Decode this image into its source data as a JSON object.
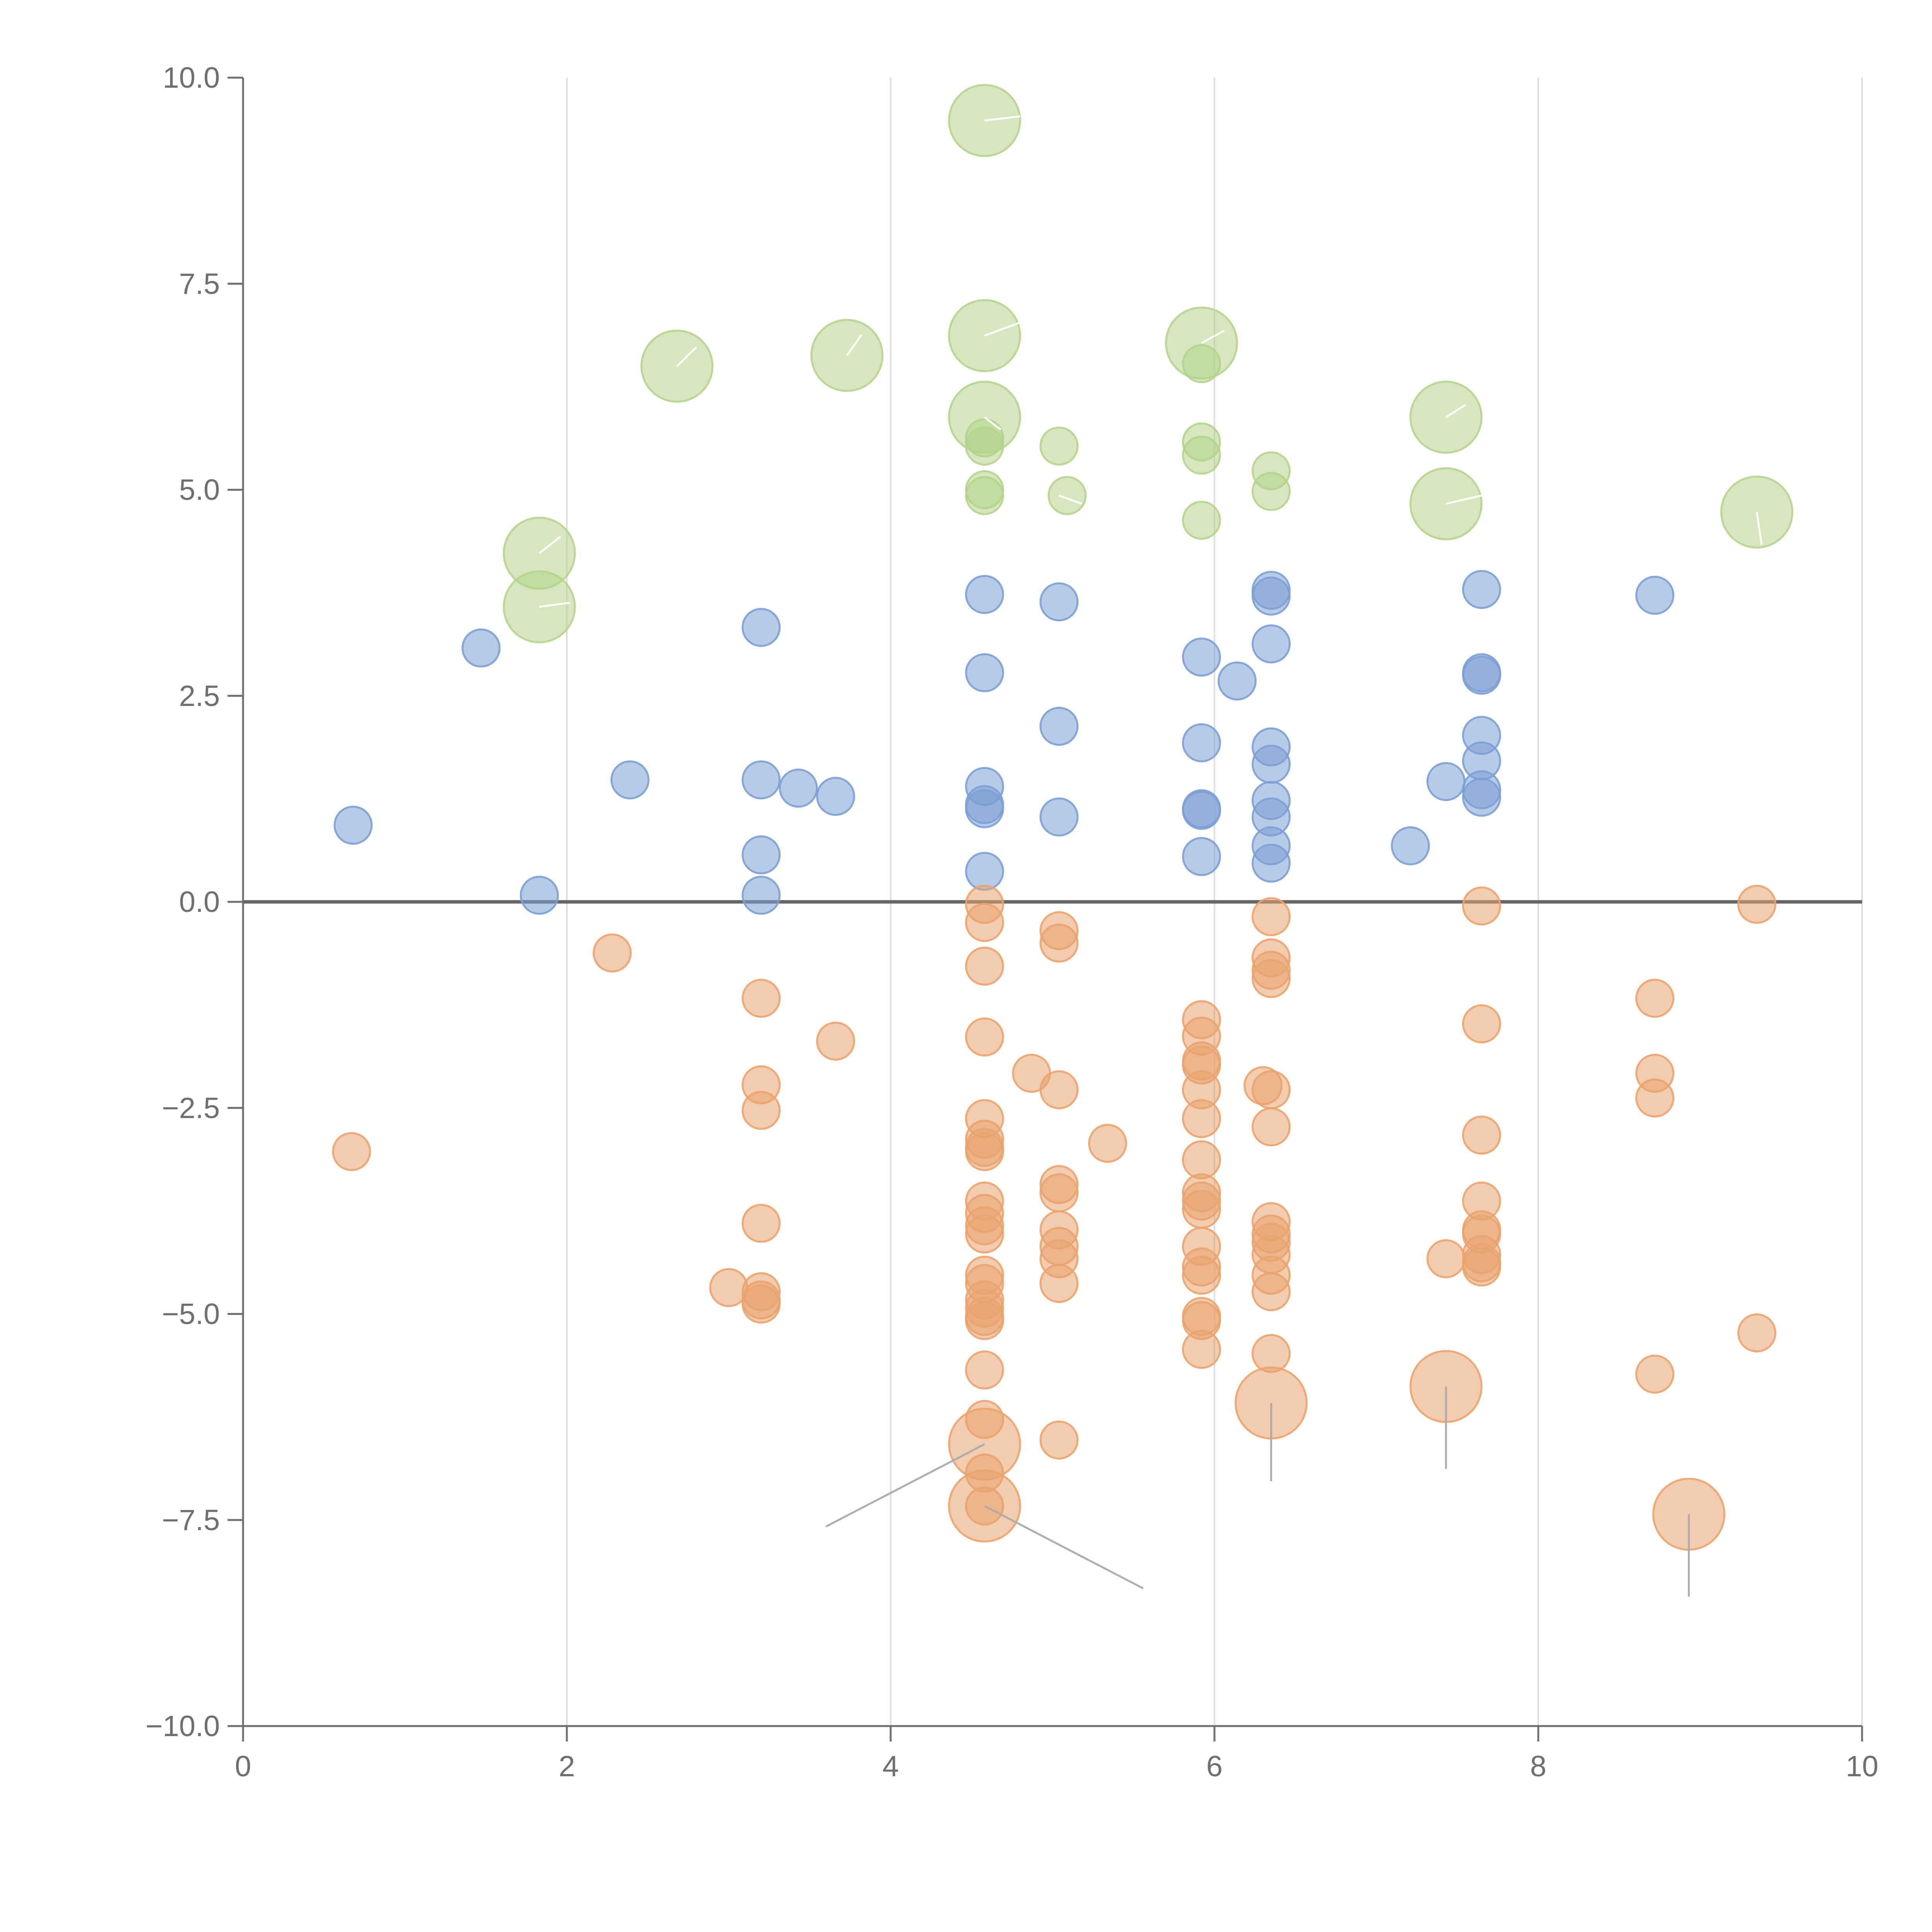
{
  "chart_data": {
    "type": "scatter",
    "title": "",
    "xlabel": "",
    "ylabel": "",
    "xlim": [
      0,
      10
    ],
    "ylim": [
      -10,
      10
    ],
    "x_ticks": [
      0,
      2,
      4,
      6,
      8,
      10
    ],
    "x_tick_labels": [
      "0",
      "2",
      "4",
      "6",
      "8",
      "10"
    ],
    "y_ticks": [
      10,
      7.5,
      5,
      2.5,
      0,
      -2.5,
      -5,
      -7.5,
      -10
    ],
    "y_tick_labels": [
      "10.0",
      "7.5",
      "5.0",
      "2.5",
      "0.0",
      "−2.5",
      "−5.0",
      "−7.5",
      "−10.0"
    ],
    "x_grid": true,
    "y_grid": false,
    "zero_line_y": 0,
    "legend": "none",
    "colors": {
      "blue": "#7c9fd4",
      "orange": "#eaa36d",
      "green": "#b4d48c",
      "grid": "#dddddd",
      "axis": "#6f6f6f",
      "zero_line": "#666666",
      "leader": "#aaaaaa"
    },
    "series": [
      {
        "name": "blue",
        "points": [
          {
            "x": 0.68,
            "y": 0.93
          },
          {
            "x": 1.47,
            "y": 3.08
          },
          {
            "x": 1.83,
            "y": 0.08
          },
          {
            "x": 2.39,
            "y": 1.48
          },
          {
            "x": 3.2,
            "y": 3.33
          },
          {
            "x": 3.2,
            "y": 1.48
          },
          {
            "x": 3.2,
            "y": 0.57
          },
          {
            "x": 3.2,
            "y": 0.08
          },
          {
            "x": 3.43,
            "y": 1.38
          },
          {
            "x": 3.66,
            "y": 1.28
          },
          {
            "x": 4.58,
            "y": 3.73
          },
          {
            "x": 4.58,
            "y": 2.78
          },
          {
            "x": 4.58,
            "y": 1.4
          },
          {
            "x": 4.58,
            "y": 1.18
          },
          {
            "x": 4.58,
            "y": 1.13
          },
          {
            "x": 4.58,
            "y": 0.37
          },
          {
            "x": 5.04,
            "y": 3.64
          },
          {
            "x": 5.04,
            "y": 2.13
          },
          {
            "x": 5.04,
            "y": 1.03
          },
          {
            "x": 5.92,
            "y": 2.97
          },
          {
            "x": 5.92,
            "y": 1.93
          },
          {
            "x": 5.92,
            "y": 1.13
          },
          {
            "x": 5.92,
            "y": 1.11
          },
          {
            "x": 5.92,
            "y": 0.55
          },
          {
            "x": 6.14,
            "y": 2.68
          },
          {
            "x": 6.35,
            "y": 3.78
          },
          {
            "x": 6.35,
            "y": 3.71
          },
          {
            "x": 6.35,
            "y": 3.13
          },
          {
            "x": 6.35,
            "y": 1.88
          },
          {
            "x": 6.35,
            "y": 1.67
          },
          {
            "x": 6.35,
            "y": 1.23
          },
          {
            "x": 6.35,
            "y": 1.03
          },
          {
            "x": 6.35,
            "y": 0.68
          },
          {
            "x": 6.35,
            "y": 0.47
          },
          {
            "x": 7.21,
            "y": 0.68
          },
          {
            "x": 7.43,
            "y": 1.46
          },
          {
            "x": 7.65,
            "y": 3.79
          },
          {
            "x": 7.65,
            "y": 2.78
          },
          {
            "x": 7.65,
            "y": 2.75
          },
          {
            "x": 7.65,
            "y": 2.02
          },
          {
            "x": 7.65,
            "y": 1.71
          },
          {
            "x": 7.65,
            "y": 1.36
          },
          {
            "x": 7.65,
            "y": 1.27
          },
          {
            "x": 8.72,
            "y": 3.72
          }
        ]
      },
      {
        "name": "orange",
        "points": [
          {
            "x": 0.67,
            "y": -3.03
          },
          {
            "x": 2.28,
            "y": -0.62
          },
          {
            "x": 3.0,
            "y": -4.68
          },
          {
            "x": 3.2,
            "y": -1.17
          },
          {
            "x": 3.2,
            "y": -2.22
          },
          {
            "x": 3.2,
            "y": -2.53
          },
          {
            "x": 3.2,
            "y": -3.9
          },
          {
            "x": 3.2,
            "y": -4.73
          },
          {
            "x": 3.2,
            "y": -4.83
          },
          {
            "x": 3.2,
            "y": -4.88
          },
          {
            "x": 3.66,
            "y": -1.69
          },
          {
            "x": 4.58,
            "y": -0.03
          },
          {
            "x": 4.58,
            "y": -0.25
          },
          {
            "x": 4.58,
            "y": -0.78
          },
          {
            "x": 4.58,
            "y": -1.64
          },
          {
            "x": 4.58,
            "y": -2.63
          },
          {
            "x": 4.58,
            "y": -2.88
          },
          {
            "x": 4.58,
            "y": -2.98
          },
          {
            "x": 4.58,
            "y": -3.03
          },
          {
            "x": 4.58,
            "y": -3.63
          },
          {
            "x": 4.58,
            "y": -3.78
          },
          {
            "x": 4.58,
            "y": -3.93
          },
          {
            "x": 4.58,
            "y": -4.03
          },
          {
            "x": 4.58,
            "y": -4.53
          },
          {
            "x": 4.58,
            "y": -4.63
          },
          {
            "x": 4.58,
            "y": -4.83
          },
          {
            "x": 4.58,
            "y": -4.93
          },
          {
            "x": 4.58,
            "y": -5.03
          },
          {
            "x": 4.58,
            "y": -5.08
          },
          {
            "x": 4.58,
            "y": -5.68
          },
          {
            "x": 4.58,
            "y": -6.28
          },
          {
            "x": 4.58,
            "y": -6.93
          },
          {
            "x": 4.58,
            "y": -7.33
          },
          {
            "x": 4.87,
            "y": -2.08
          },
          {
            "x": 5.04,
            "y": -0.35
          },
          {
            "x": 5.04,
            "y": -0.5
          },
          {
            "x": 5.04,
            "y": -2.28
          },
          {
            "x": 5.04,
            "y": -3.43
          },
          {
            "x": 5.04,
            "y": -3.53
          },
          {
            "x": 5.04,
            "y": -3.98
          },
          {
            "x": 5.04,
            "y": -4.18
          },
          {
            "x": 5.04,
            "y": -4.33
          },
          {
            "x": 5.04,
            "y": -4.63
          },
          {
            "x": 5.04,
            "y": -6.53
          },
          {
            "x": 5.34,
            "y": -2.93
          },
          {
            "x": 5.92,
            "y": -1.43
          },
          {
            "x": 5.92,
            "y": -1.63
          },
          {
            "x": 5.92,
            "y": -1.93
          },
          {
            "x": 5.92,
            "y": -1.98
          },
          {
            "x": 5.92,
            "y": -2.28
          },
          {
            "x": 5.92,
            "y": -2.63
          },
          {
            "x": 5.92,
            "y": -3.13
          },
          {
            "x": 5.92,
            "y": -3.53
          },
          {
            "x": 5.92,
            "y": -3.63
          },
          {
            "x": 5.92,
            "y": -3.73
          },
          {
            "x": 5.92,
            "y": -4.18
          },
          {
            "x": 5.92,
            "y": -4.43
          },
          {
            "x": 5.92,
            "y": -4.53
          },
          {
            "x": 5.92,
            "y": -5.03
          },
          {
            "x": 5.92,
            "y": -5.08
          },
          {
            "x": 5.92,
            "y": -5.43
          },
          {
            "x": 6.3,
            "y": -2.23
          },
          {
            "x": 6.35,
            "y": -0.18
          },
          {
            "x": 6.35,
            "y": -0.68
          },
          {
            "x": 6.35,
            "y": -0.83
          },
          {
            "x": 6.35,
            "y": -0.93
          },
          {
            "x": 6.35,
            "y": -2.28
          },
          {
            "x": 6.35,
            "y": -2.73
          },
          {
            "x": 6.35,
            "y": -3.88
          },
          {
            "x": 6.35,
            "y": -4.03
          },
          {
            "x": 6.35,
            "y": -4.13
          },
          {
            "x": 6.35,
            "y": -4.28
          },
          {
            "x": 6.35,
            "y": -4.53
          },
          {
            "x": 6.35,
            "y": -4.73
          },
          {
            "x": 6.35,
            "y": -5.48
          },
          {
            "x": 7.43,
            "y": -4.33
          },
          {
            "x": 7.65,
            "y": -0.05
          },
          {
            "x": 7.65,
            "y": -1.48
          },
          {
            "x": 7.65,
            "y": -2.83
          },
          {
            "x": 7.65,
            "y": -3.63
          },
          {
            "x": 7.65,
            "y": -3.98
          },
          {
            "x": 7.65,
            "y": -4.03
          },
          {
            "x": 7.65,
            "y": -4.28
          },
          {
            "x": 7.65,
            "y": -4.38
          },
          {
            "x": 7.65,
            "y": -4.43
          },
          {
            "x": 8.72,
            "y": -1.17
          },
          {
            "x": 8.72,
            "y": -2.08
          },
          {
            "x": 8.72,
            "y": -2.38
          },
          {
            "x": 8.72,
            "y": -5.73
          },
          {
            "x": 9.35,
            "y": -0.03
          },
          {
            "x": 9.35,
            "y": -5.23
          }
        ]
      },
      {
        "name": "green",
        "points": [
          {
            "x": 4.58,
            "y": 5.63
          },
          {
            "x": 4.58,
            "y": 5.53
          },
          {
            "x": 4.58,
            "y": 5.0
          },
          {
            "x": 4.58,
            "y": 4.93
          },
          {
            "x": 5.04,
            "y": 5.53
          },
          {
            "x": 5.09,
            "y": 4.93
          },
          {
            "x": 5.92,
            "y": 6.53
          },
          {
            "x": 5.92,
            "y": 5.58
          },
          {
            "x": 5.92,
            "y": 5.42
          },
          {
            "x": 5.92,
            "y": 4.63
          },
          {
            "x": 6.35,
            "y": 5.23
          },
          {
            "x": 6.35,
            "y": 4.98
          }
        ]
      }
    ],
    "highlighted_points": [
      {
        "series": "green",
        "x": 4.58,
        "y": 9.48
      },
      {
        "series": "green",
        "x": 4.58,
        "y": 6.87
      },
      {
        "series": "green",
        "x": 4.58,
        "y": 5.88
      },
      {
        "series": "green",
        "x": 2.68,
        "y": 6.5
      },
      {
        "series": "green",
        "x": 3.73,
        "y": 6.63
      },
      {
        "series": "green",
        "x": 5.92,
        "y": 6.78
      },
      {
        "series": "green",
        "x": 7.43,
        "y": 5.88
      },
      {
        "series": "green",
        "x": 7.43,
        "y": 4.83
      },
      {
        "series": "green",
        "x": 9.35,
        "y": 4.73
      },
      {
        "series": "green",
        "x": 1.83,
        "y": 4.23
      },
      {
        "series": "green",
        "x": 1.83,
        "y": 3.58
      },
      {
        "series": "orange",
        "x": 4.58,
        "y": -6.58
      },
      {
        "series": "orange",
        "x": 4.58,
        "y": -7.33
      },
      {
        "series": "orange",
        "x": 6.35,
        "y": -6.08
      },
      {
        "series": "orange",
        "x": 7.43,
        "y": -5.88
      },
      {
        "series": "orange",
        "x": 8.93,
        "y": -7.43
      }
    ],
    "leader_lines": [
      {
        "from": [
          4.58,
          9.48
        ],
        "to": [
          4.8,
          9.53
        ],
        "color": "white"
      },
      {
        "from": [
          4.58,
          6.87
        ],
        "to": [
          4.8,
          7.03
        ],
        "color": "white"
      },
      {
        "from": [
          4.58,
          5.88
        ],
        "to": [
          4.68,
          5.73
        ],
        "color": "white"
      },
      {
        "from": [
          2.68,
          6.5
        ],
        "to": [
          2.8,
          6.73
        ],
        "color": "white"
      },
      {
        "from": [
          3.73,
          6.63
        ],
        "to": [
          3.82,
          6.88
        ],
        "color": "white"
      },
      {
        "from": [
          5.92,
          6.78
        ],
        "to": [
          6.06,
          6.93
        ],
        "color": "white"
      },
      {
        "from": [
          7.43,
          5.88
        ],
        "to": [
          7.55,
          6.03
        ],
        "color": "white"
      },
      {
        "from": [
          7.43,
          4.83
        ],
        "to": [
          7.65,
          4.93
        ],
        "color": "white"
      },
      {
        "from": [
          9.35,
          4.73
        ],
        "to": [
          9.38,
          4.33
        ],
        "color": "white"
      },
      {
        "from": [
          1.83,
          4.23
        ],
        "to": [
          1.96,
          4.43
        ],
        "color": "white"
      },
      {
        "from": [
          1.83,
          3.58
        ],
        "to": [
          2.02,
          3.63
        ],
        "color": "white"
      },
      {
        "from": [
          5.04,
          4.93
        ],
        "to": [
          5.18,
          4.83
        ],
        "color": "white"
      },
      {
        "from": [
          4.58,
          -6.58
        ],
        "to": [
          3.6,
          -7.58
        ],
        "color": "gray"
      },
      {
        "from": [
          4.58,
          -7.33
        ],
        "to": [
          5.56,
          -8.33
        ],
        "color": "gray"
      },
      {
        "from": [
          6.35,
          -6.08
        ],
        "to": [
          6.35,
          -7.03
        ],
        "color": "gray"
      },
      {
        "from": [
          7.43,
          -5.88
        ],
        "to": [
          7.43,
          -6.88
        ],
        "color": "gray"
      },
      {
        "from": [
          8.93,
          -7.43
        ],
        "to": [
          8.93,
          -8.43
        ],
        "color": "gray"
      }
    ]
  }
}
